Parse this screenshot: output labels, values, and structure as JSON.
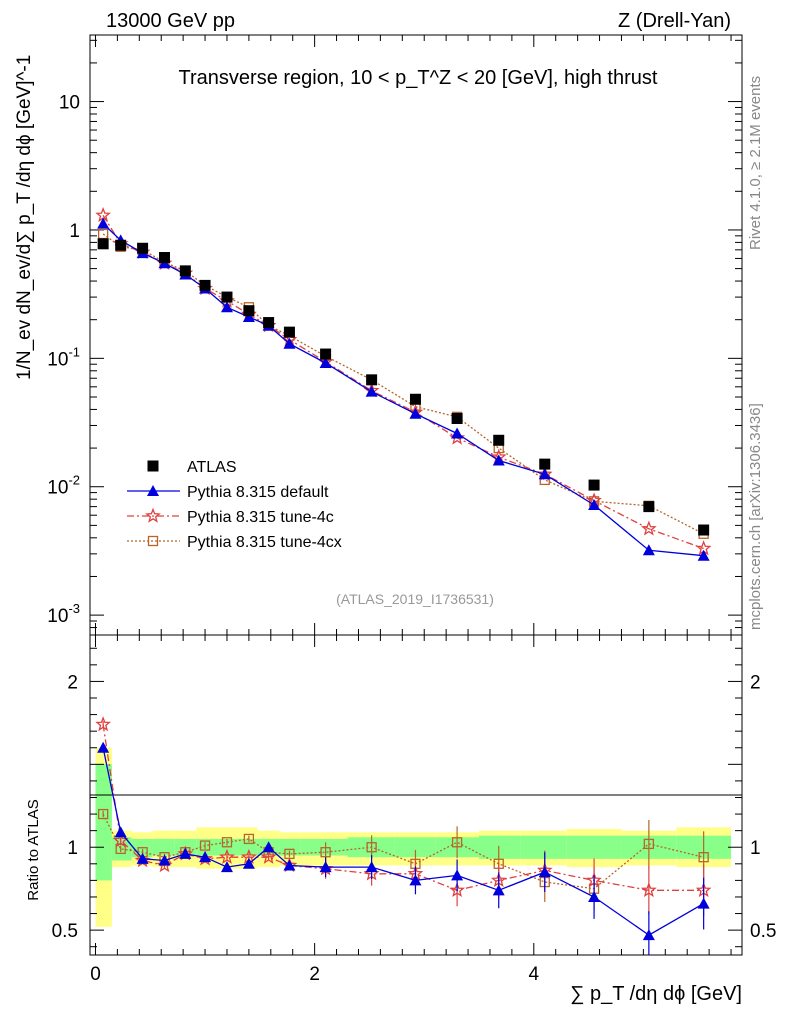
{
  "header": {
    "left": "13000 GeV pp",
    "right": "Z (Drell-Yan)"
  },
  "side_labels": {
    "rivet": "Rivet 4.1.0, ≥ 2.1M events",
    "mcplots": "mcplots.cern.ch [arXiv:1306.3436]"
  },
  "chart_data": {
    "type": "line",
    "title": "Transverse region, 10 < p_T^Z < 20 [GeV], high thrust",
    "analysis_tag": "(ATLAS_2019_I1736531)",
    "ylabel": "1/N_ev dN_ev/d∑ p_T /dη dϕ [GeV]^-1",
    "xlabel": "∑ p_T /dη dϕ [GeV]",
    "ratio_ylabel": "Ratio to ATLAS",
    "xlim": [
      -0.05,
      5.9
    ],
    "ylim": [
      0.0007,
      33
    ],
    "ratio_ylim": [
      0.35,
      2.28
    ],
    "x_ticks": [
      "0",
      "2",
      "4"
    ],
    "x_tick_values": [
      0,
      2,
      4
    ],
    "y_ticks": [
      "10",
      "1",
      "10^-1",
      "10^-2",
      "10^-3"
    ],
    "y_tick_values": [
      10,
      1,
      0.1,
      0.01,
      0.001
    ],
    "ratio_ticks": [
      "2",
      "1",
      "0.5"
    ],
    "ratio_tick_values": [
      2,
      1,
      0.5
    ],
    "x": [
      0.07,
      0.23,
      0.43,
      0.63,
      0.82,
      1.0,
      1.2,
      1.4,
      1.58,
      1.77,
      2.1,
      2.52,
      2.92,
      3.3,
      3.68,
      4.1,
      4.55,
      5.05,
      5.55
    ],
    "band_edges": [
      0.0,
      0.15,
      0.33,
      0.52,
      0.72,
      0.92,
      1.1,
      1.3,
      1.48,
      1.68,
      1.87,
      2.3,
      2.73,
      3.1,
      3.5,
      3.88,
      4.3,
      4.8,
      5.3,
      5.8
    ],
    "stat_band": [
      [
        0.8,
        1.5
      ],
      [
        0.92,
        1.06
      ],
      [
        0.94,
        1.05
      ],
      [
        0.95,
        1.05
      ],
      [
        0.95,
        1.05
      ],
      [
        0.95,
        1.05
      ],
      [
        0.95,
        1.05
      ],
      [
        0.95,
        1.05
      ],
      [
        0.95,
        1.05
      ],
      [
        0.95,
        1.05
      ],
      [
        0.95,
        1.05
      ],
      [
        0.94,
        1.06
      ],
      [
        0.94,
        1.06
      ],
      [
        0.94,
        1.06
      ],
      [
        0.93,
        1.07
      ],
      [
        0.93,
        1.07
      ],
      [
        0.93,
        1.07
      ],
      [
        0.93,
        1.07
      ],
      [
        0.93,
        1.07
      ]
    ],
    "syst_band": [
      [
        0.52,
        1.6
      ],
      [
        0.88,
        1.1
      ],
      [
        0.89,
        1.09
      ],
      [
        0.88,
        1.1
      ],
      [
        0.88,
        1.1
      ],
      [
        0.87,
        1.12
      ],
      [
        0.87,
        1.12
      ],
      [
        0.87,
        1.12
      ],
      [
        0.88,
        1.1
      ],
      [
        0.89,
        1.09
      ],
      [
        0.89,
        1.09
      ],
      [
        0.89,
        1.09
      ],
      [
        0.89,
        1.09
      ],
      [
        0.89,
        1.09
      ],
      [
        0.89,
        1.1
      ],
      [
        0.89,
        1.1
      ],
      [
        0.88,
        1.11
      ],
      [
        0.89,
        1.1
      ],
      [
        0.88,
        1.12
      ]
    ],
    "series": [
      {
        "name": "ATLAS",
        "marker": "square",
        "color": "#000000",
        "values": [
          0.78,
          0.76,
          0.72,
          0.61,
          0.48,
          0.37,
          0.3,
          0.235,
          0.19,
          0.16,
          0.108,
          0.068,
          0.048,
          0.034,
          0.023,
          0.015,
          0.0103,
          0.007,
          0.0046
        ],
        "ratio": [
          1,
          1,
          1,
          1,
          1,
          1,
          1,
          1,
          1,
          1,
          1,
          1,
          1,
          1,
          1,
          1,
          1,
          1,
          1
        ]
      },
      {
        "name": "Pythia 8.315 default",
        "marker": "triangle",
        "color": "#0000dd",
        "style": "solid",
        "values": [
          1.12,
          0.83,
          0.66,
          0.55,
          0.45,
          0.35,
          0.25,
          0.21,
          0.18,
          0.13,
          0.092,
          0.055,
          0.037,
          0.026,
          0.016,
          0.0125,
          0.0072,
          0.0032,
          0.0029
        ],
        "ratio": [
          1.6,
          1.09,
          0.93,
          0.92,
          0.96,
          0.94,
          0.88,
          0.9,
          1.0,
          0.89,
          0.88,
          0.88,
          0.8,
          0.83,
          0.74,
          0.85,
          0.7,
          0.47,
          0.66
        ]
      },
      {
        "name": "Pythia 8.315 tune-4c",
        "marker": "star",
        "color": "#e04040",
        "style": "dashdot",
        "values": [
          1.3,
          0.78,
          0.67,
          0.55,
          0.46,
          0.35,
          0.28,
          0.22,
          0.18,
          0.14,
          0.094,
          0.056,
          0.038,
          0.024,
          0.017,
          0.0125,
          0.0078,
          0.0047,
          0.0033
        ],
        "ratio": [
          1.74,
          1.04,
          0.92,
          0.89,
          0.96,
          0.93,
          0.94,
          0.94,
          0.94,
          0.89,
          0.87,
          0.84,
          0.84,
          0.74,
          0.8,
          0.86,
          0.8,
          0.74,
          0.74
        ]
      },
      {
        "name": "Pythia 8.315 tune-4cx",
        "marker": "open-square",
        "color": "#b8652b",
        "style": "dotted",
        "values": [
          0.93,
          0.74,
          0.7,
          0.56,
          0.48,
          0.37,
          0.3,
          0.25,
          0.18,
          0.15,
          0.104,
          0.068,
          0.042,
          0.035,
          0.02,
          0.0113,
          0.0077,
          0.0071,
          0.0043
        ],
        "ratio": [
          1.2,
          0.99,
          0.97,
          0.94,
          0.97,
          1.01,
          1.03,
          1.05,
          0.97,
          0.96,
          0.97,
          1.0,
          0.9,
          1.03,
          0.9,
          0.79,
          0.75,
          1.02,
          0.94
        ]
      }
    ]
  }
}
